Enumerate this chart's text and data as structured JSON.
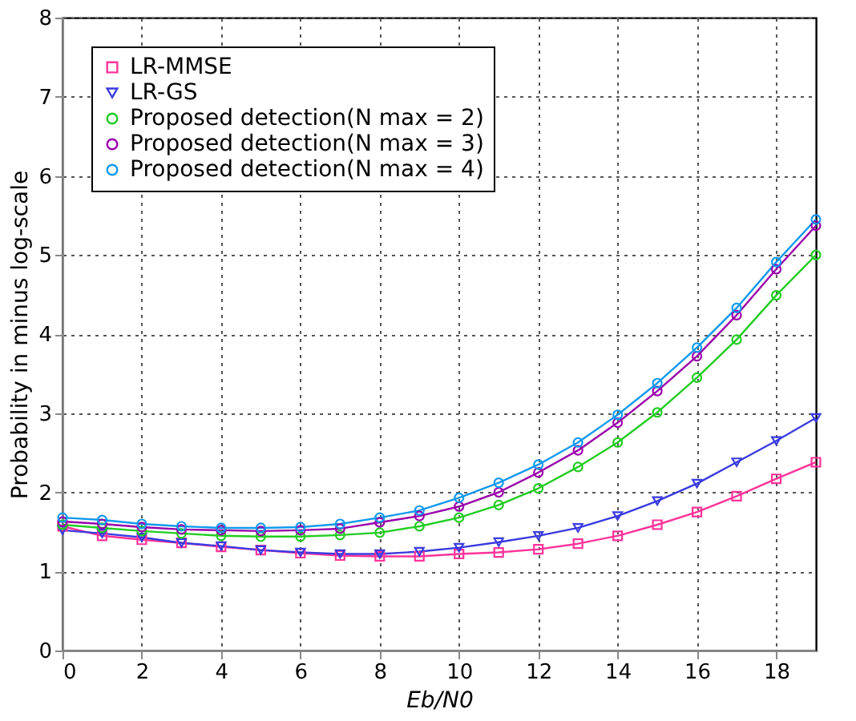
{
  "chart_data": {
    "type": "line",
    "xlabel": "Eb/N0",
    "ylabel": "Probability in minus log-scale",
    "x": [
      0,
      1,
      2,
      3,
      4,
      5,
      6,
      7,
      8,
      9,
      10,
      11,
      12,
      13,
      14,
      15,
      16,
      17,
      18,
      19
    ],
    "xlim": [
      0,
      19
    ],
    "xticks": [
      0,
      2,
      4,
      6,
      8,
      10,
      12,
      14,
      16,
      18
    ],
    "ylim": [
      0,
      8
    ],
    "yticks": [
      0,
      1,
      2,
      3,
      4,
      5,
      6,
      7,
      8
    ],
    "grid": true,
    "legend": "top left",
    "line_style": "solid",
    "series": [
      {
        "name": "LR-MMSE",
        "color": "#ff3399",
        "marker": "square",
        "values": [
          1.57,
          1.45,
          1.4,
          1.36,
          1.31,
          1.27,
          1.23,
          1.2,
          1.19,
          1.19,
          1.22,
          1.24,
          1.28,
          1.35,
          1.45,
          1.59,
          1.75,
          1.95,
          2.17,
          2.38
        ]
      },
      {
        "name": "LR-GS",
        "color": "#3a3ae0",
        "marker": "triangle",
        "values": [
          1.52,
          1.48,
          1.43,
          1.36,
          1.32,
          1.27,
          1.24,
          1.22,
          1.22,
          1.25,
          1.3,
          1.37,
          1.45,
          1.55,
          1.7,
          1.89,
          2.11,
          2.38,
          2.65,
          2.94
        ]
      },
      {
        "name": "Proposed detection(N max = 2)",
        "color": "#22cc22",
        "marker": "circle",
        "values": [
          1.59,
          1.55,
          1.51,
          1.48,
          1.45,
          1.44,
          1.44,
          1.46,
          1.49,
          1.57,
          1.68,
          1.84,
          2.05,
          2.32,
          2.63,
          3.01,
          3.45,
          3.93,
          4.49,
          5.0
        ]
      },
      {
        "name": "Proposed detection(N max = 3)",
        "color": "#9900aa",
        "marker": "circle",
        "values": [
          1.63,
          1.6,
          1.56,
          1.53,
          1.52,
          1.51,
          1.52,
          1.54,
          1.62,
          1.7,
          1.82,
          2.0,
          2.25,
          2.53,
          2.88,
          3.28,
          3.72,
          4.24,
          4.82,
          5.37
        ]
      },
      {
        "name": "Proposed detection(N max = 4)",
        "color": "#1199ee",
        "marker": "circle",
        "values": [
          1.68,
          1.65,
          1.6,
          1.57,
          1.55,
          1.55,
          1.56,
          1.6,
          1.68,
          1.77,
          1.93,
          2.12,
          2.35,
          2.63,
          2.98,
          3.38,
          3.83,
          4.33,
          4.91,
          5.45
        ]
      }
    ]
  }
}
